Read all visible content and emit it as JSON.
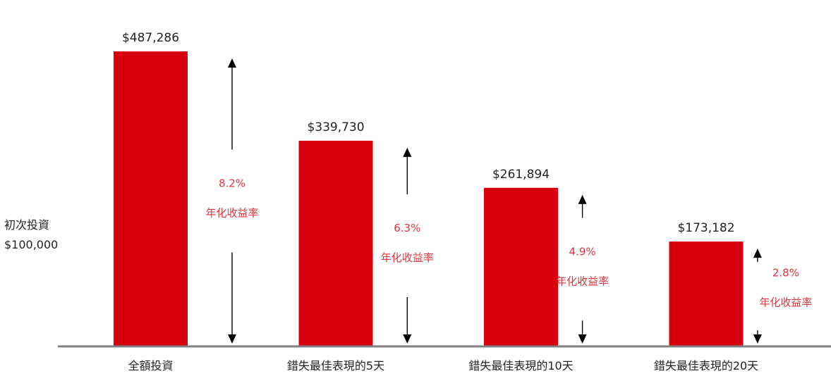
{
  "initial_investment": {
    "label": "初次投資",
    "value": "$100,000"
  },
  "colors": {
    "bar": "#d9000e",
    "rate_text": "#d9363e",
    "axis": "#7f7f7f",
    "arrow": "#000000",
    "text": "#222222"
  },
  "chart_data": {
    "type": "bar",
    "title": "",
    "xlabel": "",
    "ylabel": "",
    "categories": [
      "全額投資",
      "錯失最佳表現的5天",
      "錯失最佳表現的10天",
      "錯失最佳表現的20天"
    ],
    "values": [
      487286,
      339730,
      261894,
      173182
    ],
    "value_labels": [
      "$487,286",
      "$339,730",
      "$261,894",
      "$173,182"
    ],
    "annualized_returns": [
      "8.2%",
      "6.3%",
      "4.9%",
      "2.8%"
    ],
    "return_label": "年化收益率",
    "ylim": [
      0,
      487286
    ],
    "grid": false,
    "legend": "none"
  }
}
